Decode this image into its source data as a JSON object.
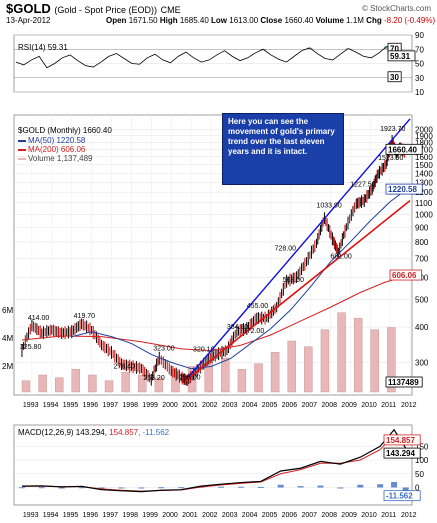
{
  "header": {
    "symbol": "$GOLD",
    "description": "(Gold - Spot Price (EOD))",
    "exchange": "CME",
    "date": "13-Apr-2012",
    "open_label": "Open",
    "open": "1671.50",
    "high_label": "High",
    "high": "1685.40",
    "low_label": "Low",
    "low": "1613.00",
    "close_label": "Close",
    "close": "1660.40",
    "volume_label": "Volume",
    "volume": "1.1M",
    "chg_label": "Chg",
    "chg": "-8.20 (-0.49%)",
    "brand": "© StockCharts.com"
  },
  "colors": {
    "up_bar": "#000000",
    "down_bar": "#cc0000",
    "ma50": "#1f3ea0",
    "ma200": "#d42020",
    "trend": "#1010e0",
    "support": "#e01010",
    "volume": "#e8b8b8",
    "callout": "#1a3fa8",
    "macd": "#000000",
    "signal": "#d42020",
    "histogram": "#3a6fc0",
    "rsi": "#000000",
    "rsi_fill": "#55a055"
  },
  "callout_text": "Here you can see the movement of gold's primary trend over the last eleven years and it is intact.",
  "chart_data": [
    {
      "type": "line",
      "title": "RSI(14) 59.31",
      "series": [
        {
          "name": "RSI(14)",
          "values": [
            52,
            48,
            55,
            60,
            44,
            50,
            58,
            62,
            54,
            47,
            45,
            52,
            60,
            64,
            57,
            50,
            49,
            58,
            63,
            55,
            51,
            60,
            66,
            58,
            52,
            55,
            62,
            68,
            60,
            54,
            58,
            65,
            70,
            62,
            56,
            52,
            60,
            68,
            72,
            64,
            57,
            55,
            63,
            71,
            66,
            60,
            58,
            65,
            74,
            70,
            62,
            59
          ]
        }
      ],
      "last_value": "59.31",
      "ylim": [
        10,
        90
      ],
      "y_ticks": [
        "90",
        "70",
        "50",
        "30",
        "10"
      ],
      "value_tags": [
        "70",
        "59.31",
        "30"
      ]
    },
    {
      "type": "line",
      "title": "$GOLD (Monthly) 1660.40",
      "x_ticks": [
        "1993",
        "1994",
        "1995",
        "1996",
        "1997",
        "1998",
        "1999",
        "2000",
        "2001",
        "2002",
        "2003",
        "2004",
        "2005",
        "2006",
        "2007",
        "2008",
        "2009",
        "2010",
        "2011",
        "2012"
      ],
      "y_ticks": [
        "2000",
        "1900",
        "1800",
        "1700",
        "1600",
        "1500",
        "1400",
        "1300",
        "1200",
        "1100",
        "1000",
        "900",
        "800",
        "700",
        "600",
        "500",
        "400",
        "300"
      ],
      "vol_ticks": [
        "6M",
        "4M",
        "2M"
      ],
      "legend": [
        "$GOLD (Monthly) 1660.40",
        "MA(50) 1220.58",
        "MA(200) 606.06",
        "Volume 1,137,489"
      ],
      "series": [
        {
          "name": "$GOLD",
          "values": [
            [
              1993.0,
              330
            ],
            [
              1993.5,
              405
            ],
            [
              1994.0,
              380
            ],
            [
              1994.5,
              390
            ],
            [
              1995.0,
              380
            ],
            [
              1995.5,
              385
            ],
            [
              1996.0,
              410
            ],
            [
              1996.5,
              390
            ],
            [
              1997.0,
              345
            ],
            [
              1997.5,
              325
            ],
            [
              1998.0,
              295
            ],
            [
              1998.5,
              290
            ],
            [
              1999.0,
              285
            ],
            [
              1999.5,
              260
            ],
            [
              1999.9,
              310
            ],
            [
              2000.5,
              280
            ],
            [
              2001.0,
              265
            ],
            [
              2001.3,
              258
            ],
            [
              2001.8,
              280
            ],
            [
              2002.3,
              305
            ],
            [
              2002.8,
              320
            ],
            [
              2003.3,
              330
            ],
            [
              2003.8,
              385
            ],
            [
              2004.3,
              395
            ],
            [
              2004.8,
              430
            ],
            [
              2005.3,
              430
            ],
            [
              2005.8,
              470
            ],
            [
              2006.3,
              580
            ],
            [
              2006.8,
              600
            ],
            [
              2007.3,
              680
            ],
            [
              2007.8,
              790
            ],
            [
              2008.2,
              970
            ],
            [
              2008.6,
              820
            ],
            [
              2008.9,
              730
            ],
            [
              2009.3,
              900
            ],
            [
              2009.8,
              1090
            ],
            [
              2010.2,
              1120
            ],
            [
              2010.6,
              1230
            ],
            [
              2010.9,
              1390
            ],
            [
              2011.3,
              1500
            ],
            [
              2011.6,
              1820
            ],
            [
              2011.8,
              1650
            ],
            [
              2012.0,
              1720
            ],
            [
              2012.28,
              1660.4
            ]
          ]
        },
        {
          "name": "MA(50)",
          "values": [
            [
              1995.5,
              370
            ],
            [
              1996.5,
              385
            ],
            [
              1997.5,
              370
            ],
            [
              1998.5,
              350
            ],
            [
              1999.5,
              320
            ],
            [
              2000.5,
              300
            ],
            [
              2001.5,
              285
            ],
            [
              2002.5,
              290
            ],
            [
              2003.5,
              310
            ],
            [
              2004.5,
              350
            ],
            [
              2005.5,
              395
            ],
            [
              2006.5,
              460
            ],
            [
              2007.5,
              555
            ],
            [
              2008.5,
              680
            ],
            [
              2009.5,
              800
            ],
            [
              2010.5,
              950
            ],
            [
              2011.5,
              1110
            ],
            [
              2012.28,
              1220.58
            ]
          ]
        },
        {
          "name": "MA(200)",
          "values": [
            [
              1993,
              360
            ],
            [
              1995,
              372
            ],
            [
              1997,
              370
            ],
            [
              1999,
              355
            ],
            [
              2001,
              335
            ],
            [
              2002.5,
              330
            ],
            [
              2004,
              345
            ],
            [
              2005.5,
              375
            ],
            [
              2007,
              420
            ],
            [
              2008.5,
              470
            ],
            [
              2010,
              530
            ],
            [
              2011.2,
              575
            ],
            [
              2012.28,
              606.06
            ]
          ]
        },
        {
          "name": "Volume",
          "values": [
            0.2,
            0.3,
            0.25,
            0.4,
            0.3,
            0.2,
            0.35,
            0.3,
            0.25,
            0.4,
            0.45,
            0.5,
            0.6,
            0.4,
            0.5,
            0.7,
            0.9,
            0.8,
            1.1,
            1.4,
            1.3,
            1.1,
            1.137489
          ]
        }
      ],
      "data_labels": [
        {
          "text": "414.00",
          "x": 1993.7,
          "y": 414
        },
        {
          "text": "325.80",
          "x": 1993.3,
          "y": 325.8
        },
        {
          "text": "419.70",
          "x": 1996.0,
          "y": 419.7
        },
        {
          "text": "278.40",
          "x": 1998.0,
          "y": 278.4
        },
        {
          "text": "323.00",
          "x": 2000.0,
          "y": 323
        },
        {
          "text": "253.20",
          "x": 1999.5,
          "y": 253.2
        },
        {
          "text": "255.00",
          "x": 2001.3,
          "y": 255
        },
        {
          "text": "320.10",
          "x": 2002.0,
          "y": 320.1
        },
        {
          "text": "384.50",
          "x": 2003.7,
          "y": 384.5
        },
        {
          "text": "372.00",
          "x": 2004.5,
          "y": 372
        },
        {
          "text": "455.00",
          "x": 2004.7,
          "y": 455
        },
        {
          "text": "563.00",
          "x": 2006.5,
          "y": 563
        },
        {
          "text": "728.00",
          "x": 2006.1,
          "y": 728
        },
        {
          "text": "681.00",
          "x": 2008.9,
          "y": 681
        },
        {
          "text": "1033.90",
          "x": 2008.2,
          "y": 1033.9
        },
        {
          "text": "1227.50",
          "x": 2009.9,
          "y": 1227.5
        },
        {
          "text": "1523.90",
          "x": 2011.3,
          "y": 1523.9
        },
        {
          "text": "1923.70",
          "x": 2011.4,
          "y": 1923.7
        }
      ],
      "value_tags": [
        "1660.40",
        "1220.58",
        "606.06",
        "1137489"
      ]
    },
    {
      "type": "line",
      "title": "MACD(12,26,9) 143.294, 154.857, -11.562",
      "series": [
        {
          "name": "MACD(12,26,9)",
          "values": [
            [
              1993,
              5
            ],
            [
              1994,
              6
            ],
            [
              1995,
              2
            ],
            [
              1996,
              4
            ],
            [
              1997,
              -8
            ],
            [
              1998,
              -12
            ],
            [
              1999,
              -15
            ],
            [
              2000,
              -10
            ],
            [
              2001,
              -8
            ],
            [
              2002,
              5
            ],
            [
              2003,
              12
            ],
            [
              2004,
              18
            ],
            [
              2005,
              22
            ],
            [
              2006,
              60
            ],
            [
              2007,
              70
            ],
            [
              2008,
              95
            ],
            [
              2009,
              85
            ],
            [
              2010,
              110
            ],
            [
              2011,
              150
            ],
            [
              2011.7,
              210
            ],
            [
              2012.28,
              143.294
            ]
          ]
        },
        {
          "name": "signal",
          "values": [
            [
              1993,
              4
            ],
            [
              1994,
              5
            ],
            [
              1995,
              3
            ],
            [
              1996,
              3
            ],
            [
              1997,
              -5
            ],
            [
              1998,
              -10
            ],
            [
              1999,
              -13
            ],
            [
              2000,
              -11
            ],
            [
              2001,
              -9
            ],
            [
              2002,
              2
            ],
            [
              2003,
              9
            ],
            [
              2004,
              15
            ],
            [
              2005,
              20
            ],
            [
              2006,
              50
            ],
            [
              2007,
              65
            ],
            [
              2008,
              88
            ],
            [
              2009,
              88
            ],
            [
              2010,
              100
            ],
            [
              2011,
              138
            ],
            [
              2011.7,
              190
            ],
            [
              2012.28,
              154.857
            ]
          ]
        },
        {
          "name": "histogram",
          "values": [
            [
              1993,
              1
            ],
            [
              1994,
              1
            ],
            [
              1995,
              -1
            ],
            [
              1996,
              1
            ],
            [
              1997,
              -3
            ],
            [
              1998,
              -2
            ],
            [
              1999,
              -2
            ],
            [
              2000,
              1
            ],
            [
              2001,
              1
            ],
            [
              2002,
              3
            ],
            [
              2003,
              3
            ],
            [
              2004,
              3
            ],
            [
              2005,
              2
            ],
            [
              2006,
              10
            ],
            [
              2007,
              5
            ],
            [
              2008,
              7
            ],
            [
              2009,
              -3
            ],
            [
              2010,
              10
            ],
            [
              2011,
              12
            ],
            [
              2011.7,
              20
            ],
            [
              2012.28,
              -11.562
            ]
          ]
        }
      ],
      "y_ticks": [
        "150",
        "100",
        "50",
        "0"
      ],
      "value_tags": [
        "154.857",
        "143.294",
        "-11.562"
      ],
      "x_ticks": [
        "1993",
        "1994",
        "1995",
        "1996",
        "1997",
        "1998",
        "1999",
        "2000",
        "2001",
        "2002",
        "2003",
        "2004",
        "2005",
        "2006",
        "2007",
        "2008",
        "2009",
        "2010",
        "2011",
        "2012"
      ]
    }
  ]
}
